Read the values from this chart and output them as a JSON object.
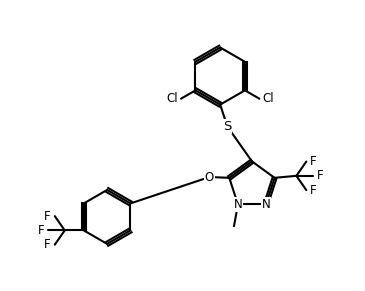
{
  "bg": "#ffffff",
  "lc": "#000000",
  "lw": 1.5,
  "fs": 8.5,
  "fig_w": 3.65,
  "fig_h": 2.91,
  "dpi": 100,
  "xlim": [
    -0.2,
    8.5
  ],
  "ylim": [
    1.2,
    8.5
  ]
}
